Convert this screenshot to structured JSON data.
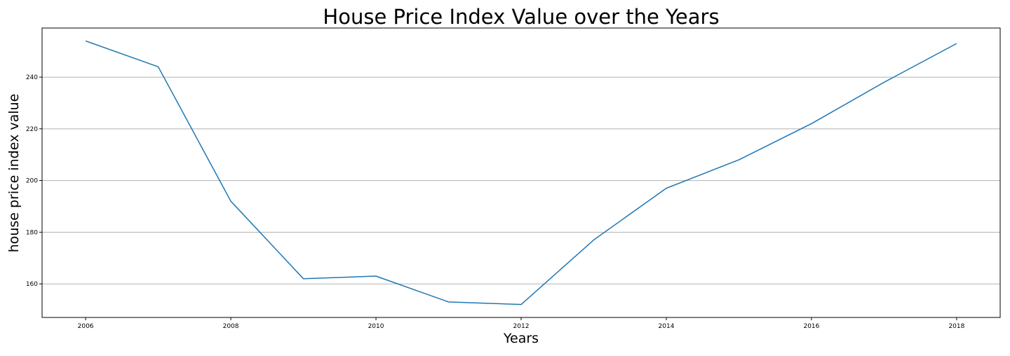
{
  "chart_data": {
    "type": "line",
    "title": "House Price Index Value over the Years",
    "xlabel": "Years",
    "ylabel": "house price index value",
    "x": [
      2006,
      2007,
      2008,
      2009,
      2010,
      2011,
      2012,
      2013,
      2014,
      2015,
      2016,
      2017,
      2018
    ],
    "series": [
      {
        "values": [
          254,
          244,
          192,
          162,
          163,
          153,
          152,
          177,
          197,
          208,
          222,
          238,
          253
        ],
        "color": "#1f77b4"
      }
    ],
    "xlim": [
      2005.4,
      2018.6
    ],
    "ylim": [
      147,
      259
    ],
    "xticks": [
      2006,
      2008,
      2010,
      2012,
      2014,
      2016,
      2018
    ],
    "yticks": [
      160,
      180,
      200,
      220,
      240
    ],
    "grid": "horizontal",
    "grid_color": "#b0b0b0",
    "axes_color": "#000000"
  }
}
